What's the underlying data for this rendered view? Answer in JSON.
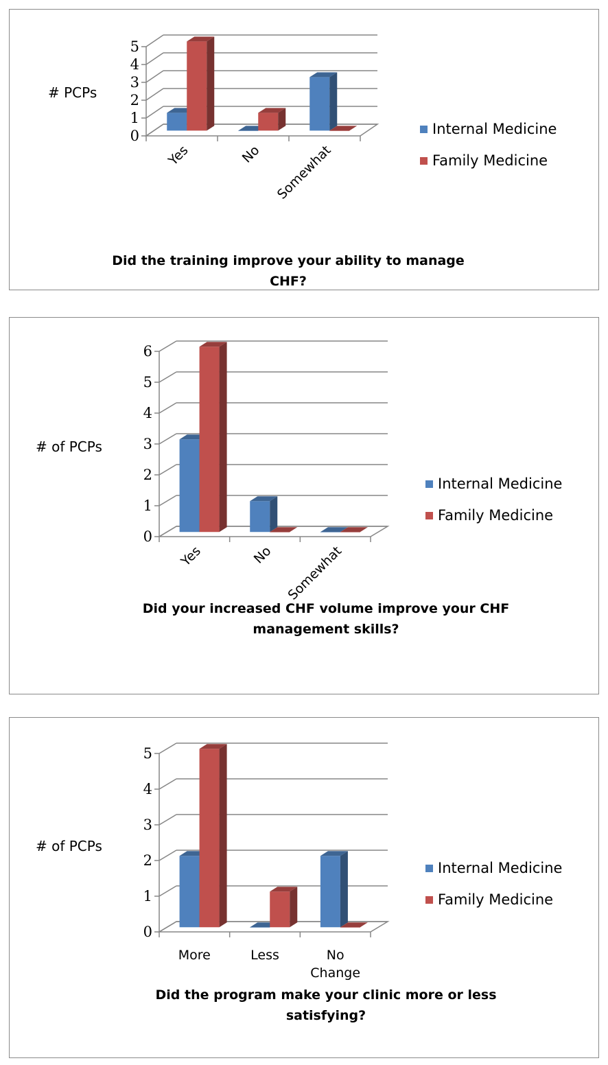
{
  "colors": {
    "internal_medicine": "#4F81BD",
    "family_medicine": "#C0504D",
    "grid": "#868686"
  },
  "chart_data": [
    {
      "type": "bar",
      "title_lines": [
        "Did the training improve your ability to manage",
        "CHF?"
      ],
      "ylabel": "# PCPs",
      "xlabel": "",
      "categories": [
        "Yes",
        "No",
        "Somewhat"
      ],
      "ylim": [
        0,
        5
      ],
      "yticks": [
        "0",
        "1",
        "2",
        "3",
        "4",
        "5"
      ],
      "grid": true,
      "legend_position": "right",
      "series": [
        {
          "name": "Internal Medicine",
          "values": [
            1,
            0,
            3
          ]
        },
        {
          "name": "Family Medicine",
          "values": [
            5,
            1,
            0
          ]
        }
      ]
    },
    {
      "type": "bar",
      "title_lines": [
        "Did your increased CHF volume improve your CHF",
        "management skills?"
      ],
      "ylabel": "# of PCPs",
      "xlabel": "",
      "categories": [
        "Yes",
        "No",
        "Somewhat"
      ],
      "ylim": [
        0,
        6
      ],
      "yticks": [
        "0",
        "1",
        "2",
        "3",
        "4",
        "5",
        "6"
      ],
      "grid": true,
      "legend_position": "right",
      "series": [
        {
          "name": "Internal Medicine",
          "values": [
            3,
            1,
            0
          ]
        },
        {
          "name": "Family Medicine",
          "values": [
            6,
            0,
            0
          ]
        }
      ]
    },
    {
      "type": "bar",
      "title_lines": [
        "Did the program make your clinic more or less",
        "satisfying?"
      ],
      "ylabel": "# of PCPs",
      "xlabel": "",
      "categories": [
        "More",
        "Less",
        "No Change"
      ],
      "category_lines": [
        [
          "More"
        ],
        [
          "Less"
        ],
        [
          "No",
          "Change"
        ]
      ],
      "ylim": [
        0,
        5
      ],
      "yticks": [
        "0",
        "1",
        "2",
        "3",
        "4",
        "5"
      ],
      "grid": true,
      "legend_position": "right",
      "series": [
        {
          "name": "Internal Medicine",
          "values": [
            2,
            0,
            2
          ]
        },
        {
          "name": "Family Medicine",
          "values": [
            5,
            1,
            0
          ]
        }
      ]
    }
  ]
}
